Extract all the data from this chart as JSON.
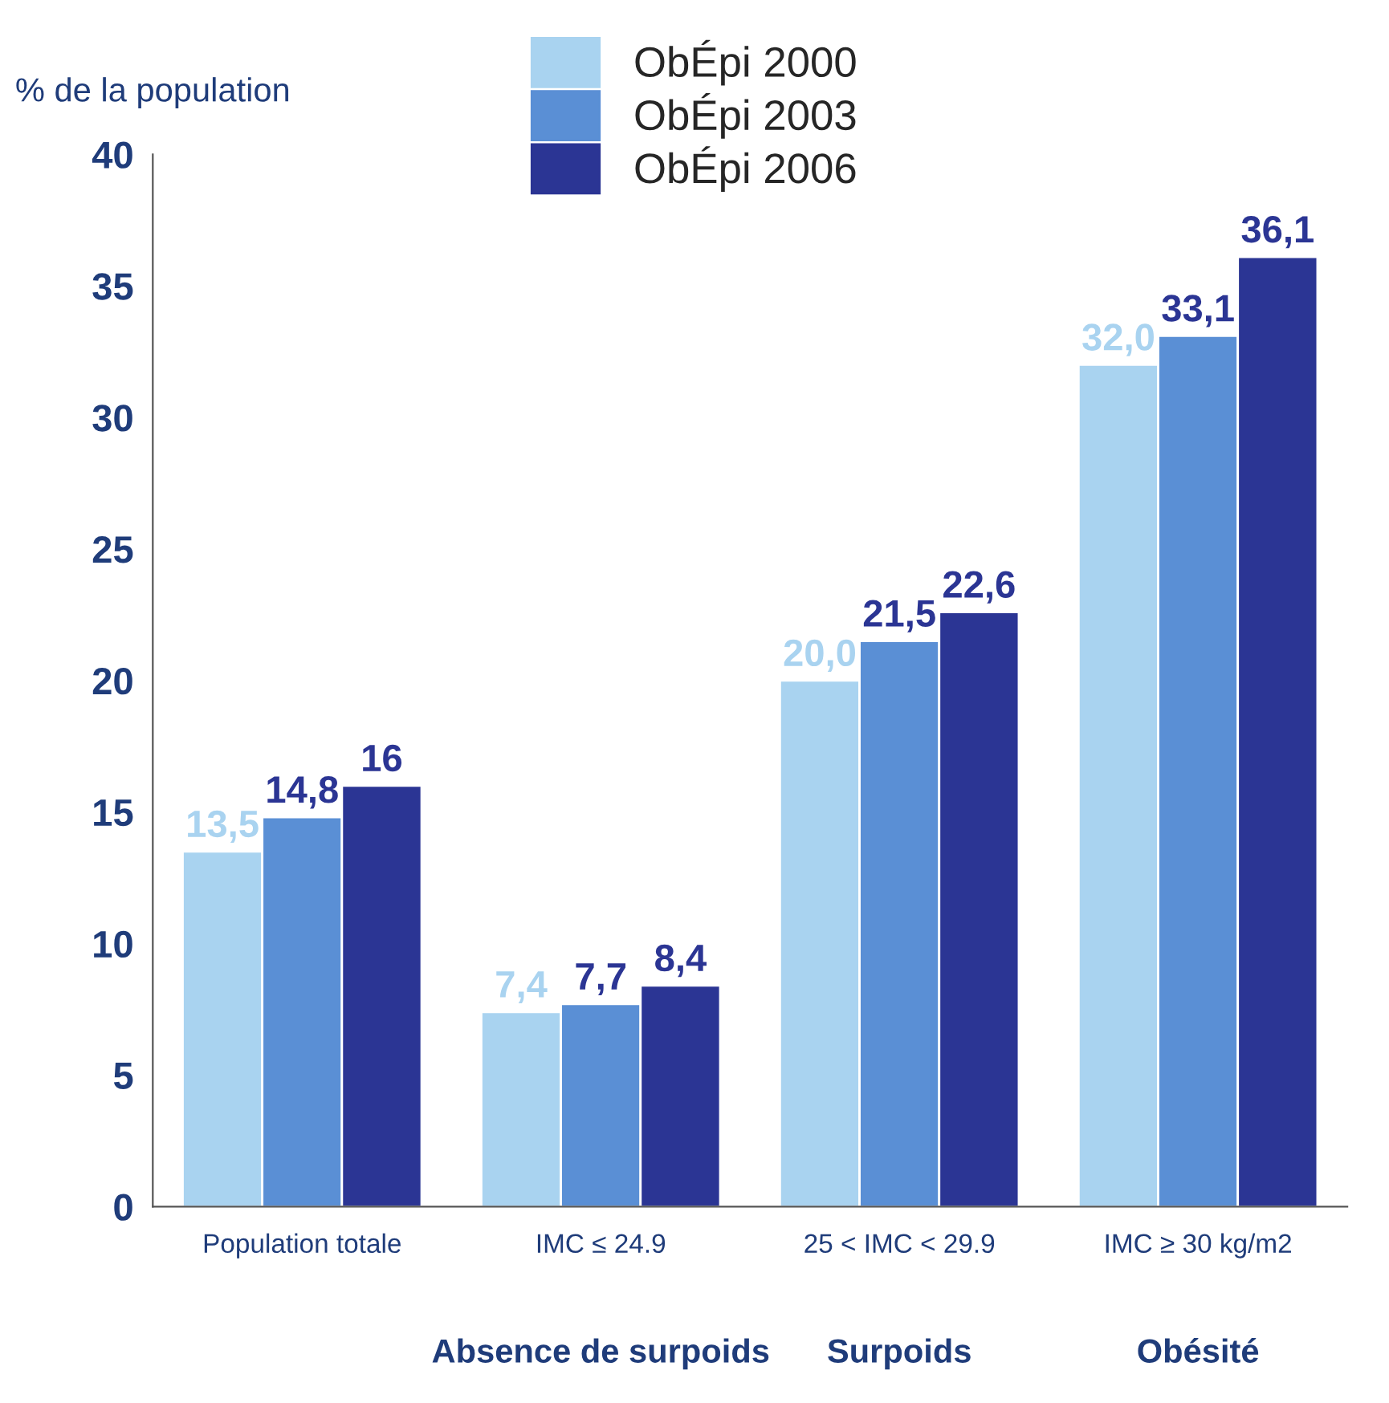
{
  "chart_data": {
    "type": "bar",
    "ylabel": "% de la population",
    "categories": [
      "Population totale",
      "IMC ≤ 24.9",
      "25 < IMC < 29.9",
      "IMC ≥ 30 kg/m2"
    ],
    "series": [
      {
        "name": "ObÉpi 2000",
        "color": "#a9d3f0",
        "values": [
          13.5,
          7.4,
          20.0,
          32.0
        ],
        "value_labels": [
          "13,5",
          "7,4",
          "20,0",
          "32,0"
        ]
      },
      {
        "name": "ObÉpi 2003",
        "color": "#5a8fd5",
        "values": [
          14.8,
          7.7,
          21.5,
          33.1
        ],
        "value_labels": [
          "14,8",
          "7,7",
          "21,5",
          "33,1"
        ]
      },
      {
        "name": "ObÉpi 2006",
        "color": "#2b3594",
        "values": [
          16,
          8.4,
          22.6,
          36.1
        ],
        "value_labels": [
          "16",
          "8,4",
          "22,6",
          "36,1"
        ]
      }
    ],
    "ylim": [
      0,
      40
    ],
    "yticks": [
      0,
      5,
      10,
      15,
      20,
      25,
      30,
      35,
      40
    ],
    "annotations": [
      "Absence de surpoids",
      "Surpoids",
      "Obésité"
    ],
    "legend": "top",
    "grid": false
  }
}
